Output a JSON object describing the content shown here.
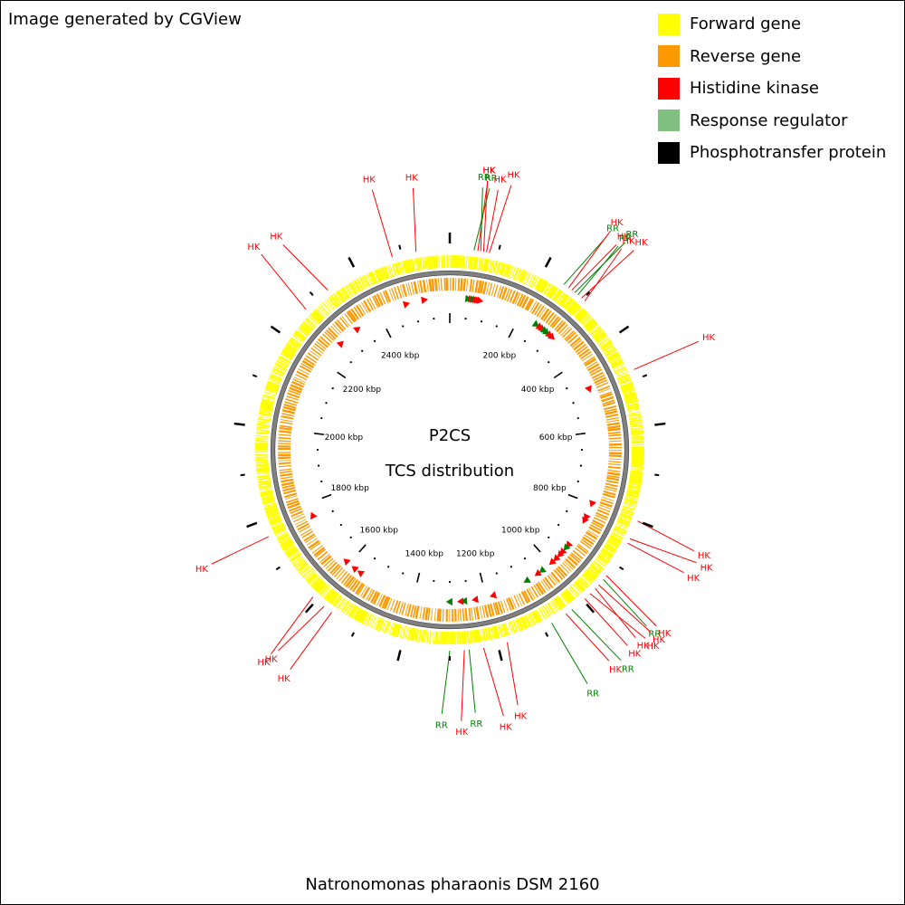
{
  "credit": "Image generated by CGView",
  "organism": "Natronomonas pharaonis DSM 2160",
  "center": {
    "line1": "P2CS",
    "line2": "TCS distribution"
  },
  "legend": [
    {
      "label": "Forward gene",
      "color": "#ffff00"
    },
    {
      "label": "Reverse gene",
      "color": "#ff9900"
    },
    {
      "label": "Histidine kinase",
      "color": "#ff0000"
    },
    {
      "label": "Response regulator",
      "color": "#80c080"
    },
    {
      "label": "Phosphotransfer protein",
      "color": "#000000"
    }
  ],
  "colors": {
    "hk": "#ff0000",
    "rr": "#008000",
    "forward": "#ffff00",
    "reverse": "#ff9900",
    "backbone": "#808080"
  },
  "genome": {
    "length_kbp": 2600,
    "tick_labels": [
      {
        "kbp": 200,
        "text": "200 kbp"
      },
      {
        "kbp": 400,
        "text": "400 kbp"
      },
      {
        "kbp": 600,
        "text": "600 kbp"
      },
      {
        "kbp": 800,
        "text": "800 kbp"
      },
      {
        "kbp": 1000,
        "text": "1000 kbp"
      },
      {
        "kbp": 1200,
        "text": "1200 kbp"
      },
      {
        "kbp": 1400,
        "text": "1400 kbp"
      },
      {
        "kbp": 1600,
        "text": "1600 kbp"
      },
      {
        "kbp": 1800,
        "text": "1800 kbp"
      },
      {
        "kbp": 2000,
        "text": "2000 kbp"
      },
      {
        "kbp": 2200,
        "text": "2200 kbp"
      },
      {
        "kbp": 2400,
        "text": "2400 kbp"
      }
    ]
  },
  "features": [
    {
      "label": "RR",
      "type": "rr",
      "pos": 50
    },
    {
      "label": "HK",
      "type": "hk",
      "pos": 58
    },
    {
      "label": "RR",
      "type": "rr",
      "pos": 64
    },
    {
      "label": "HK",
      "type": "hk",
      "pos": 70
    },
    {
      "label": "HK",
      "type": "hk",
      "pos": 76
    },
    {
      "label": "HK",
      "type": "hk",
      "pos": 82
    },
    {
      "label": "RR",
      "type": "rr",
      "pos": 250
    },
    {
      "label": "HK",
      "type": "hk",
      "pos": 262
    },
    {
      "label": "HK",
      "type": "hk",
      "pos": 270
    },
    {
      "label": "RR",
      "type": "rr",
      "pos": 278
    },
    {
      "label": "RR",
      "type": "rr",
      "pos": 286
    },
    {
      "label": "HK",
      "type": "hk",
      "pos": 296
    },
    {
      "label": "HK",
      "type": "hk",
      "pos": 305
    },
    {
      "label": "HK",
      "type": "hk",
      "pos": 480
    },
    {
      "label": "HK",
      "type": "hk",
      "pos": 800
    },
    {
      "label": "HK",
      "type": "hk",
      "pos": 840
    },
    {
      "label": "HK",
      "type": "hk",
      "pos": 850
    },
    {
      "label": "HK",
      "type": "hk",
      "pos": 930
    },
    {
      "label": "RR",
      "type": "rr",
      "pos": 940
    },
    {
      "label": "HK",
      "type": "hk",
      "pos": 955
    },
    {
      "label": "HK",
      "type": "hk",
      "pos": 965
    },
    {
      "label": "HK",
      "type": "hk",
      "pos": 980
    },
    {
      "label": "HK",
      "type": "hk",
      "pos": 995
    },
    {
      "label": "RR",
      "type": "rr",
      "pos": 1030
    },
    {
      "label": "HK",
      "type": "hk",
      "pos": 1045
    },
    {
      "label": "RR",
      "type": "rr",
      "pos": 1080
    },
    {
      "label": "HK",
      "type": "hk",
      "pos": 1180
    },
    {
      "label": "HK",
      "type": "hk",
      "pos": 1230
    },
    {
      "label": "RR",
      "type": "rr",
      "pos": 1260
    },
    {
      "label": "HK",
      "type": "hk",
      "pos": 1270
    },
    {
      "label": "RR",
      "type": "rr",
      "pos": 1300
    },
    {
      "label": "HK",
      "type": "hk",
      "pos": 1560
    },
    {
      "label": "HK",
      "type": "hk",
      "pos": 1580
    },
    {
      "label": "HK",
      "type": "hk",
      "pos": 1610
    },
    {
      "label": "HK",
      "type": "hk",
      "pos": 1765
    },
    {
      "label": "HK",
      "type": "hk",
      "pos": 2270
    },
    {
      "label": "HK",
      "type": "hk",
      "pos": 2330
    },
    {
      "label": "HK",
      "type": "hk",
      "pos": 2480
    },
    {
      "label": "HK",
      "type": "hk",
      "pos": 2530
    }
  ]
}
